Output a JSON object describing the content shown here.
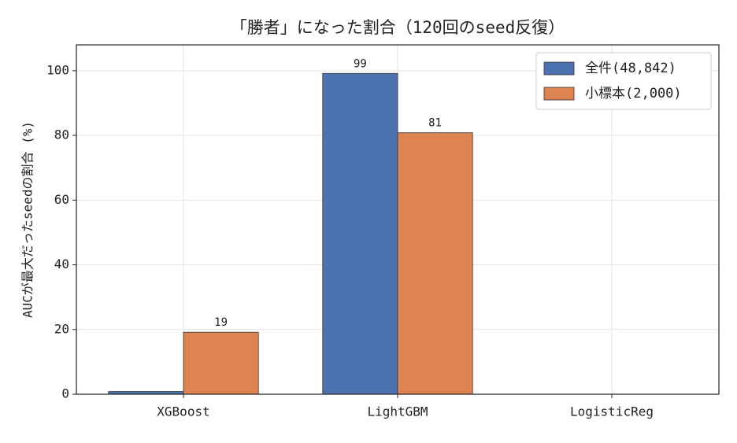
{
  "chart_data": {
    "type": "bar",
    "title": "「勝者」になった割合（120回のseed反復）",
    "y_label": "AUCが最大だったseedの割合 (%)",
    "categories": [
      "XGBoost",
      "LightGBM",
      "LogisticReg"
    ],
    "series": [
      {
        "name": "全件(48,842)",
        "color": "#4c72b0",
        "values": [
          0.83,
          99.17,
          0
        ],
        "value_labels": [
          null,
          "99",
          null
        ]
      },
      {
        "name": "小標本(2,000)",
        "color": "#dd8452",
        "values": [
          19.17,
          80.83,
          0
        ],
        "value_labels": [
          "19",
          "81",
          null
        ]
      }
    ],
    "ylim": [
      0,
      108
    ],
    "yticks": [
      0,
      20,
      40,
      60,
      80,
      100
    ],
    "grid": true,
    "legend": "upper right"
  }
}
